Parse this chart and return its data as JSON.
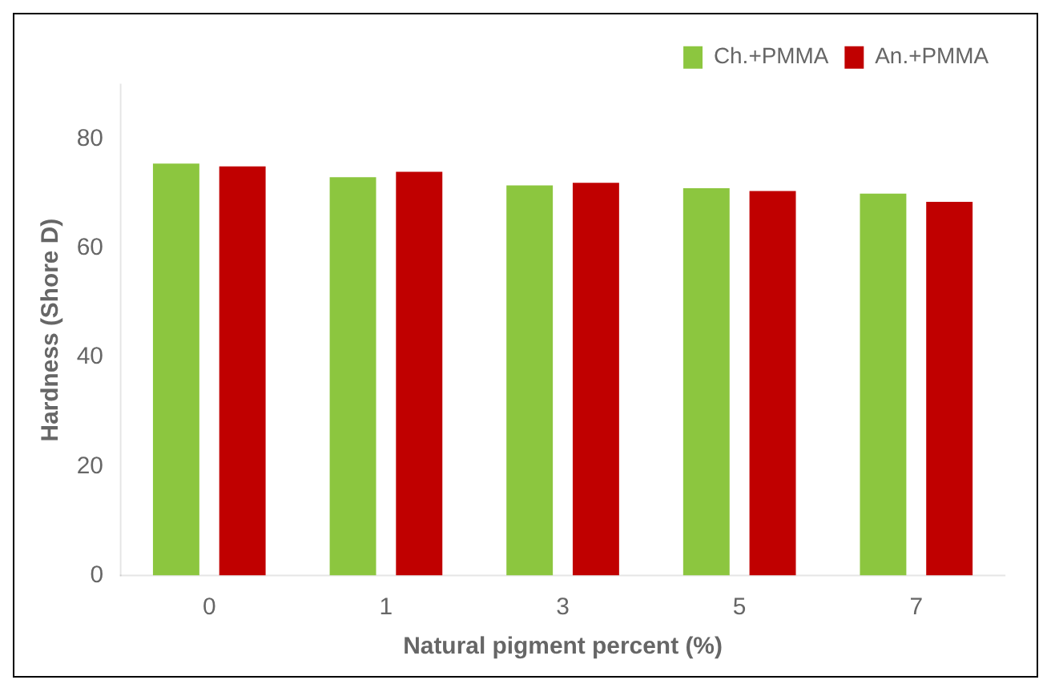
{
  "chart_data": {
    "type": "bar",
    "xlabel": "Natural pigment percent (%)",
    "ylabel": "Hardness (Shore D)",
    "categories": [
      "0",
      "1",
      "3",
      "5",
      "7"
    ],
    "series": [
      {
        "name": "Ch.+PMMA",
        "color": "#8cc63f",
        "values": [
          75.5,
          73,
          71.5,
          71,
          70
        ]
      },
      {
        "name": "An.+PMMA",
        "color": "#c00000",
        "values": [
          75,
          74,
          72,
          70.5,
          68.5
        ]
      }
    ],
    "ylim": [
      0,
      90
    ],
    "yticks": [
      0,
      20,
      40,
      60,
      80
    ],
    "grid": false,
    "legend": "top right"
  }
}
